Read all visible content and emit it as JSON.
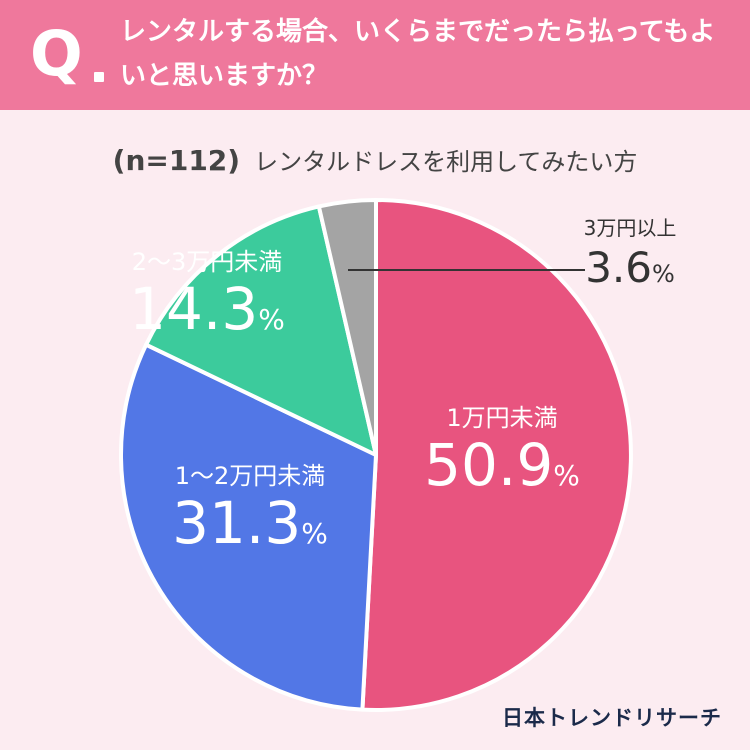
{
  "header": {
    "q_mark": "Q",
    "question": "レンタルする場合、いくらまでだったら払ってもよいと思いますか？"
  },
  "subtitle": {
    "sample": "(n=112)",
    "text": "レンタルドレスを利用してみたい方"
  },
  "brand": "日本トレンドリサーチ",
  "colors": {
    "header": "#ef789c",
    "background": "#fcecf1",
    "slice_1": "#e8547f",
    "slice_2": "#5277e6",
    "slice_3": "#3ccb9c",
    "slice_4": "#a4a4a4"
  },
  "chart_data": {
    "type": "pie",
    "slices": [
      {
        "label": "1万円未満",
        "value": 50.9,
        "display": "50.9",
        "unit": "%"
      },
      {
        "label": "1〜2万円未満",
        "value": 31.3,
        "display": "31.3",
        "unit": "%"
      },
      {
        "label": "2〜3万円未満",
        "value": 14.3,
        "display": "14.3",
        "unit": "%"
      },
      {
        "label": "3万円以上",
        "value": 3.6,
        "display": "3.6",
        "unit": "%"
      }
    ],
    "start": "12 o'clock",
    "direction": "clockwise"
  }
}
